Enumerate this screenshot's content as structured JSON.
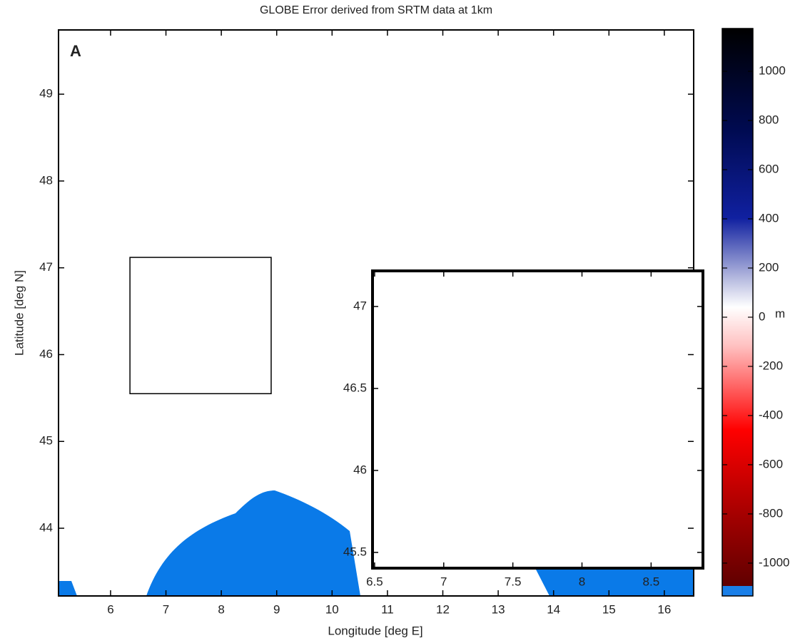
{
  "chart_data": {
    "type": "map",
    "title": "GLOBE Error derived from SRTM data at 1km",
    "panel_label": "A",
    "xlabel": "Longitude [deg E]",
    "ylabel": "Latitude [deg N]",
    "xlim": [
      5.06,
      16.53
    ],
    "ylim": [
      43.22,
      49.74
    ],
    "xticks": [
      6,
      7,
      8,
      9,
      10,
      11,
      12,
      13,
      14,
      15,
      16
    ],
    "yticks": [
      44,
      45,
      46,
      47,
      48,
      49
    ],
    "inset_region": {
      "xlim": [
        6.35,
        8.9
      ],
      "ylim": [
        45.55,
        47.12
      ]
    },
    "inset": {
      "xlim": [
        6.485,
        8.875
      ],
      "ylim": [
        45.404,
        47.217
      ],
      "xticks": [
        6.5,
        7,
        7.5,
        8,
        8.5
      ],
      "yticks": [
        45.5,
        46,
        46.5,
        47
      ]
    },
    "colorbar": {
      "label": "m",
      "lim": [
        -1093,
        1174
      ],
      "ticks": [
        -1000,
        -800,
        -600,
        -400,
        -200,
        0,
        200,
        400,
        600,
        800,
        1000
      ]
    }
  }
}
